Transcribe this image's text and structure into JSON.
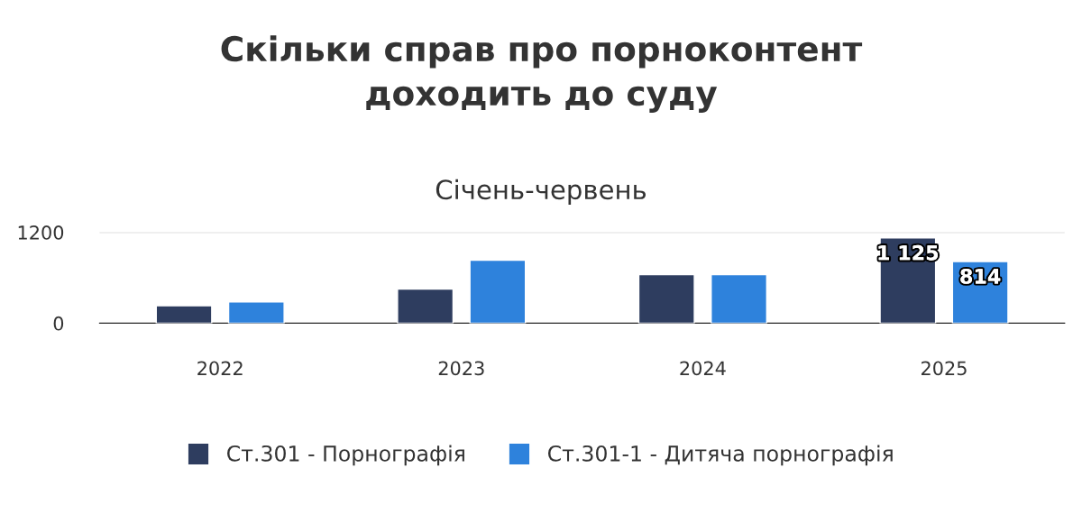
{
  "chart_data": {
    "type": "bar",
    "title": "Скільки справ про порноконтент\nдоходить до суду",
    "subtitle": "Січень-червень",
    "categories": [
      "2022",
      "2023",
      "2024",
      "2025"
    ],
    "series": [
      {
        "name": "Ст.301 - Порнографія",
        "color": "#2e3d5f",
        "values": [
          230,
          450,
          640,
          1125
        ],
        "value_labels": [
          null,
          null,
          null,
          "1 125"
        ]
      },
      {
        "name": "Ст.301-1 - Дитяча порнографія",
        "color": "#2e82dc",
        "values": [
          280,
          830,
          640,
          814
        ],
        "value_labels": [
          null,
          null,
          null,
          "814"
        ]
      }
    ],
    "ylim": [
      0,
      1200
    ],
    "yticks": [
      0,
      1200
    ],
    "grid": "y",
    "legend": "bottom"
  }
}
